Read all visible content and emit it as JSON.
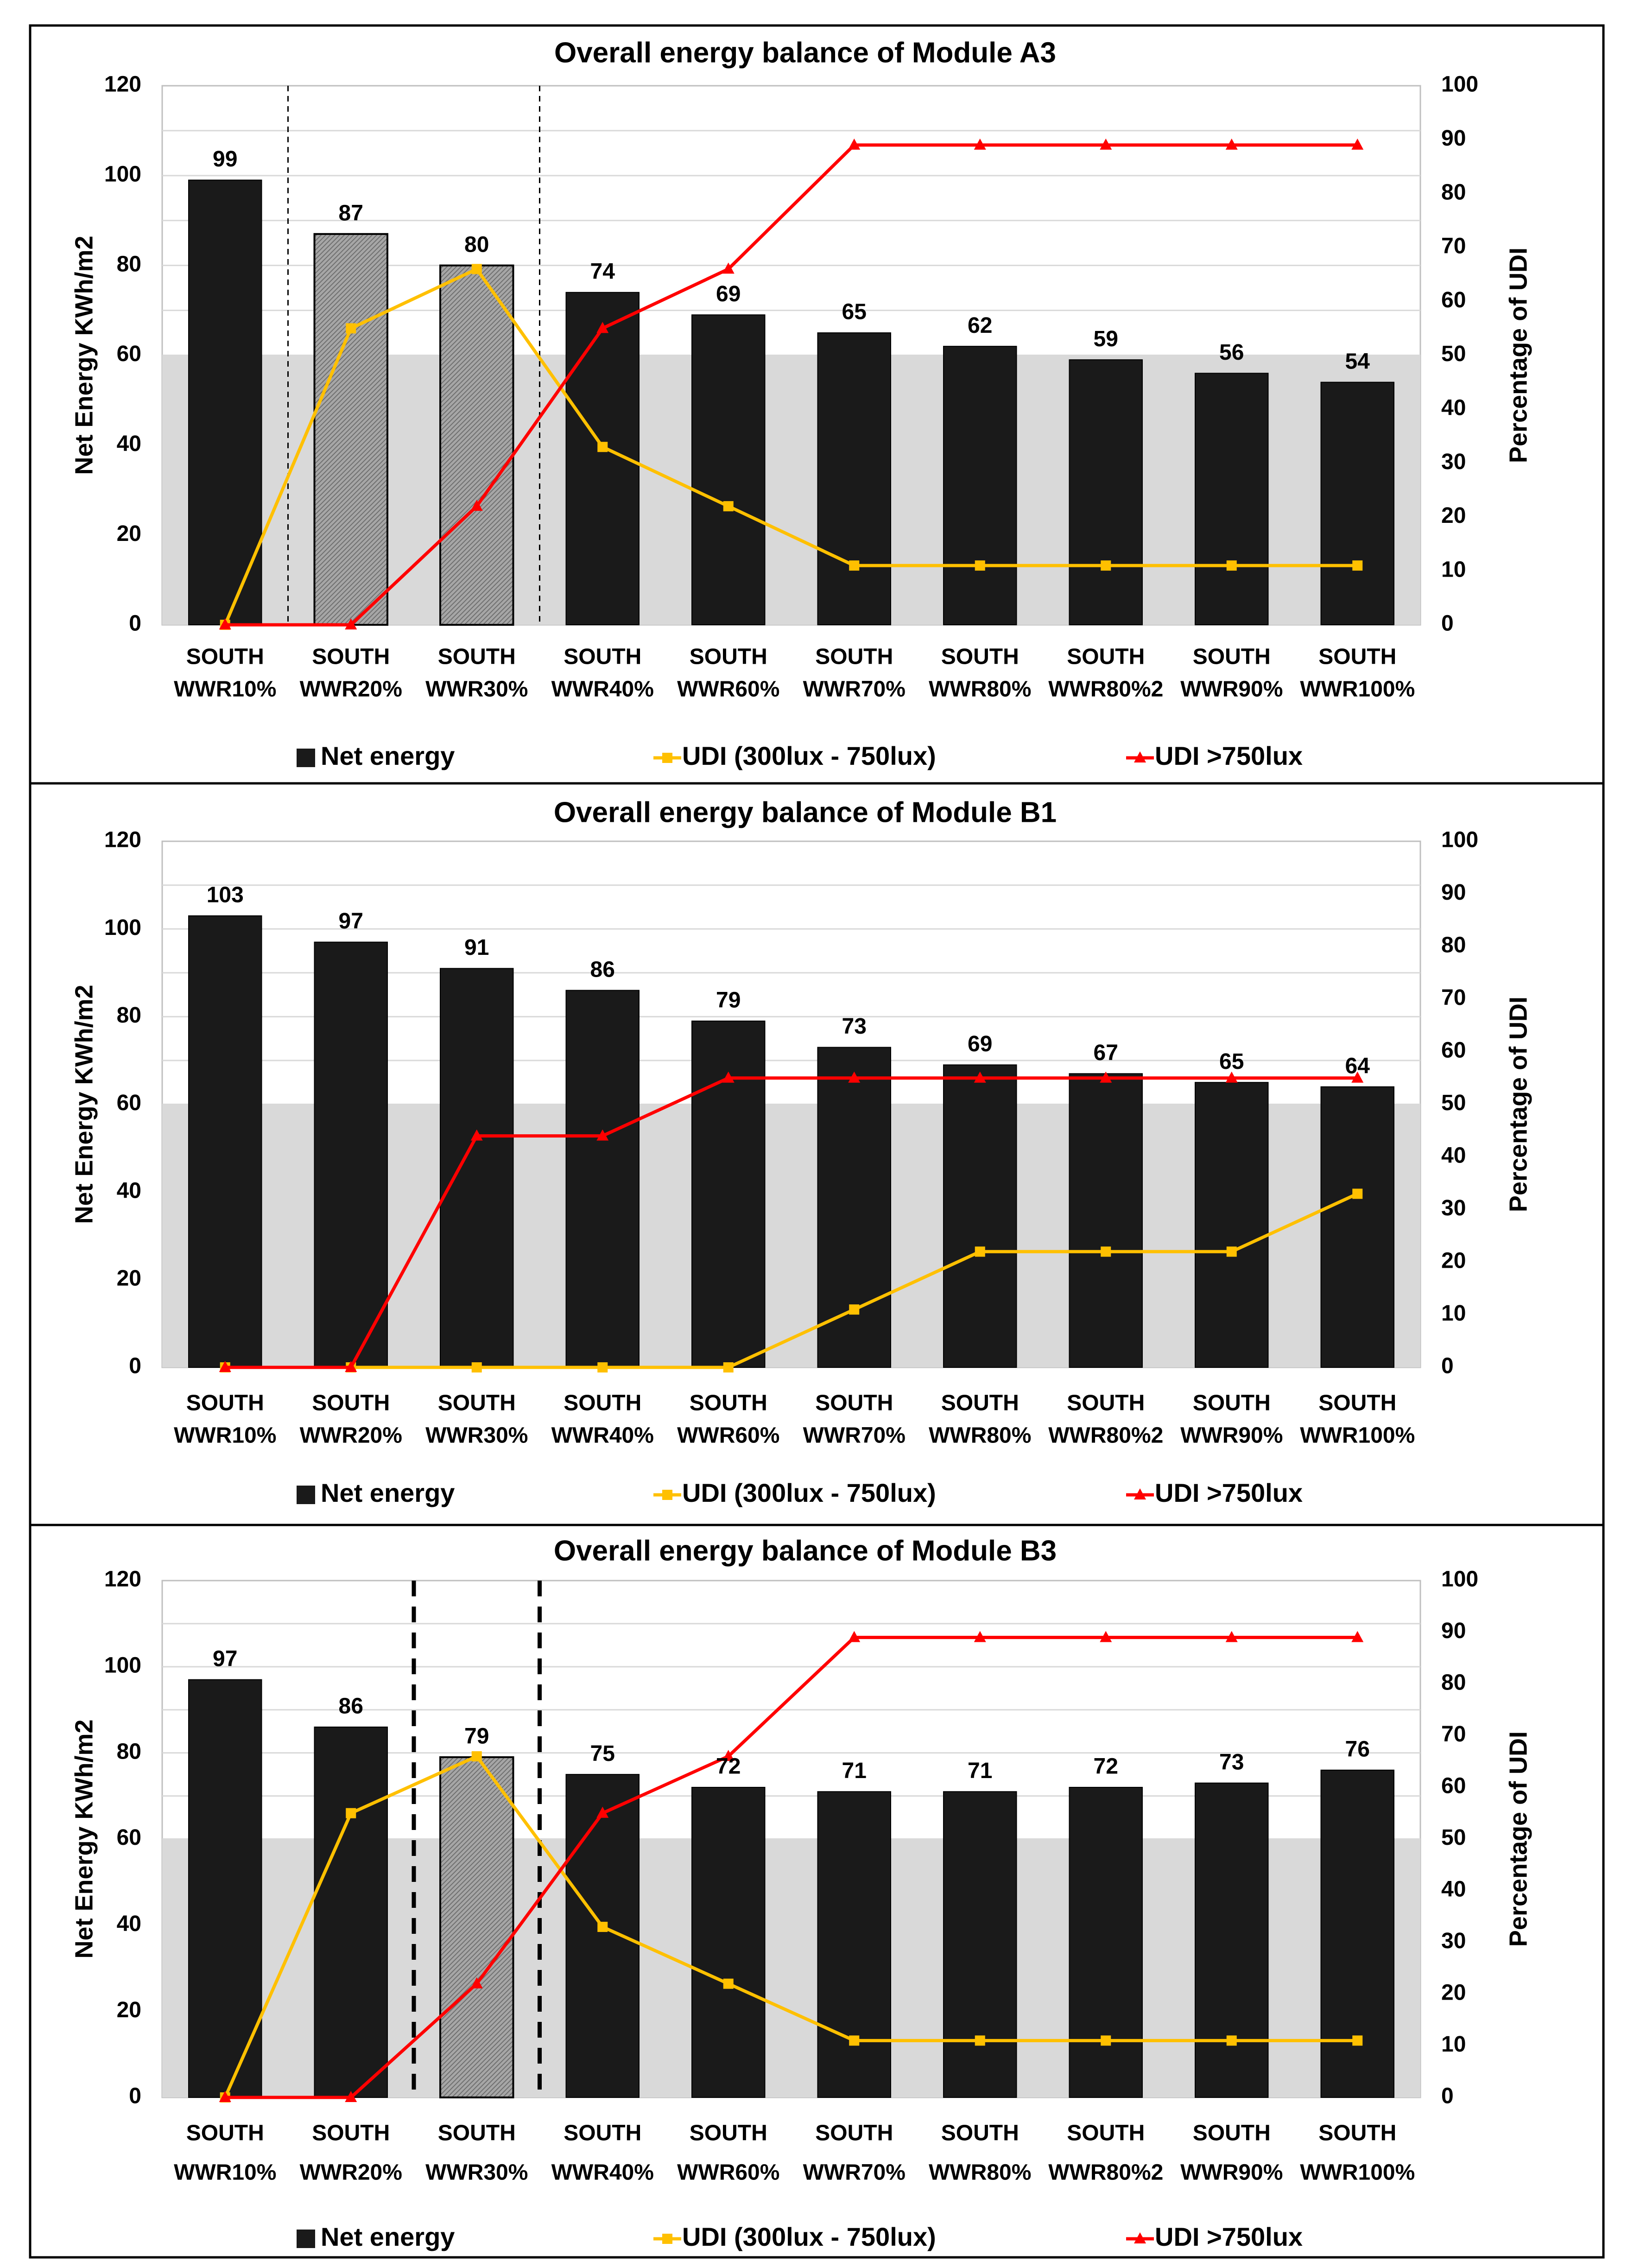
{
  "chart_data": [
    {
      "type": "bar",
      "title": "Overall energy balance of Module A3",
      "ylabel": "Net Energy KWh/m2",
      "y2label": "Percentage of UDI",
      "ylim": [
        0,
        120
      ],
      "y2lim": [
        0,
        100
      ],
      "yticks": [
        0,
        20,
        40,
        60,
        80,
        100,
        120
      ],
      "y2ticks": [
        0,
        10,
        20,
        30,
        40,
        50,
        60,
        70,
        80,
        90,
        100
      ],
      "shaded_band": [
        0,
        60
      ],
      "categories": [
        [
          "SOUTH",
          "WWR10%"
        ],
        [
          "SOUTH",
          "WWR20%"
        ],
        [
          "SOUTH",
          "WWR30%"
        ],
        [
          "SOUTH",
          "WWR40%"
        ],
        [
          "SOUTH",
          "WWR60%"
        ],
        [
          "SOUTH",
          "WWR70%"
        ],
        [
          "SOUTH",
          "WWR80%"
        ],
        [
          "SOUTH",
          "WWR80%2"
        ],
        [
          "SOUTH",
          "WWR90%"
        ],
        [
          "SOUTH",
          "WWR100%"
        ]
      ],
      "bar_styles": [
        "solid",
        "hatched",
        "hatched",
        "solid",
        "solid",
        "solid",
        "solid",
        "solid",
        "solid",
        "solid"
      ],
      "dividers": [
        1,
        3
      ],
      "divider_style": "thin",
      "series": [
        {
          "name": "Net energy",
          "kind": "bar",
          "axis": "left",
          "color": "#1a1a1a",
          "values": [
            99,
            87,
            80,
            74,
            69,
            65,
            62,
            59,
            56,
            54
          ]
        },
        {
          "name": "UDI (300lux - 750lux)",
          "kind": "line",
          "axis": "right",
          "color": "#ffc000",
          "marker": "square",
          "values": [
            0,
            55,
            66,
            33,
            22,
            11,
            11,
            11,
            11,
            11
          ]
        },
        {
          "name": "UDI >750lux",
          "kind": "line",
          "axis": "right",
          "color": "#ff0000",
          "marker": "triangle",
          "values": [
            0,
            0,
            22,
            55,
            66,
            89,
            89,
            89,
            89,
            89
          ]
        }
      ]
    },
    {
      "type": "bar",
      "title": "Overall energy balance of Module B1",
      "ylabel": "Net Energy KWh/m2",
      "y2label": "Percentage of UDI",
      "ylim": [
        0,
        120
      ],
      "y2lim": [
        0,
        100
      ],
      "yticks": [
        0,
        20,
        40,
        60,
        80,
        100,
        120
      ],
      "y2ticks": [
        0,
        10,
        20,
        30,
        40,
        50,
        60,
        70,
        80,
        90,
        100
      ],
      "shaded_band": [
        0,
        60
      ],
      "categories": [
        [
          "SOUTH",
          "WWR10%"
        ],
        [
          "SOUTH",
          "WWR20%"
        ],
        [
          "SOUTH",
          "WWR30%"
        ],
        [
          "SOUTH",
          "WWR40%"
        ],
        [
          "SOUTH",
          "WWR60%"
        ],
        [
          "SOUTH",
          "WWR70%"
        ],
        [
          "SOUTH",
          "WWR80%"
        ],
        [
          "SOUTH",
          "WWR80%2"
        ],
        [
          "SOUTH",
          "WWR90%"
        ],
        [
          "SOUTH",
          "WWR100%"
        ]
      ],
      "bar_styles": [
        "solid",
        "solid",
        "solid",
        "solid",
        "solid",
        "solid",
        "solid",
        "solid",
        "solid",
        "solid"
      ],
      "dividers": [],
      "divider_style": "none",
      "series": [
        {
          "name": "Net energy",
          "kind": "bar",
          "axis": "left",
          "color": "#1a1a1a",
          "values": [
            103,
            97,
            91,
            86,
            79,
            73,
            69,
            67,
            65,
            64
          ]
        },
        {
          "name": "UDI (300lux - 750lux)",
          "kind": "line",
          "axis": "right",
          "color": "#ffc000",
          "marker": "square",
          "values": [
            0,
            0,
            0,
            0,
            0,
            11,
            22,
            22,
            22,
            33
          ]
        },
        {
          "name": "UDI >750lux",
          "kind": "line",
          "axis": "right",
          "color": "#ff0000",
          "marker": "triangle",
          "values": [
            0,
            0,
            44,
            44,
            55,
            55,
            55,
            55,
            55,
            55
          ]
        }
      ]
    },
    {
      "type": "bar",
      "title": "Overall energy balance of Module B3",
      "ylabel": "Net Energy KWh/m2",
      "y2label": "Percentage of UDI",
      "ylim": [
        0,
        120
      ],
      "y2lim": [
        0,
        100
      ],
      "yticks": [
        0,
        20,
        40,
        60,
        80,
        100,
        120
      ],
      "y2ticks": [
        0,
        10,
        20,
        30,
        40,
        50,
        60,
        70,
        80,
        90,
        100
      ],
      "shaded_band": [
        0,
        60
      ],
      "categories": [
        [
          "SOUTH",
          "WWR10%"
        ],
        [
          "SOUTH",
          "WWR20%"
        ],
        [
          "SOUTH",
          "WWR30%"
        ],
        [
          "SOUTH",
          "WWR40%"
        ],
        [
          "SOUTH",
          "WWR60%"
        ],
        [
          "SOUTH",
          "WWR70%"
        ],
        [
          "SOUTH",
          "WWR80%"
        ],
        [
          "SOUTH",
          "WWR80%2"
        ],
        [
          "SOUTH",
          "WWR90%"
        ],
        [
          "SOUTH",
          "WWR100%"
        ]
      ],
      "bar_styles": [
        "solid",
        "solid",
        "hatched",
        "solid",
        "solid",
        "solid",
        "solid",
        "solid",
        "solid",
        "solid"
      ],
      "dividers": [
        2,
        3
      ],
      "divider_style": "thick",
      "series": [
        {
          "name": "Net energy",
          "kind": "bar",
          "axis": "left",
          "color": "#1a1a1a",
          "values": [
            97,
            86,
            79,
            75,
            72,
            71,
            71,
            72,
            73,
            76
          ]
        },
        {
          "name": "UDI (300lux - 750lux)",
          "kind": "line",
          "axis": "right",
          "color": "#ffc000",
          "marker": "square",
          "values": [
            0,
            55,
            66,
            33,
            22,
            11,
            11,
            11,
            11,
            11
          ]
        },
        {
          "name": "UDI >750lux",
          "kind": "line",
          "axis": "right",
          "color": "#ff0000",
          "marker": "triangle",
          "values": [
            0,
            0,
            22,
            55,
            66,
            89,
            89,
            89,
            89,
            89
          ]
        }
      ]
    }
  ]
}
